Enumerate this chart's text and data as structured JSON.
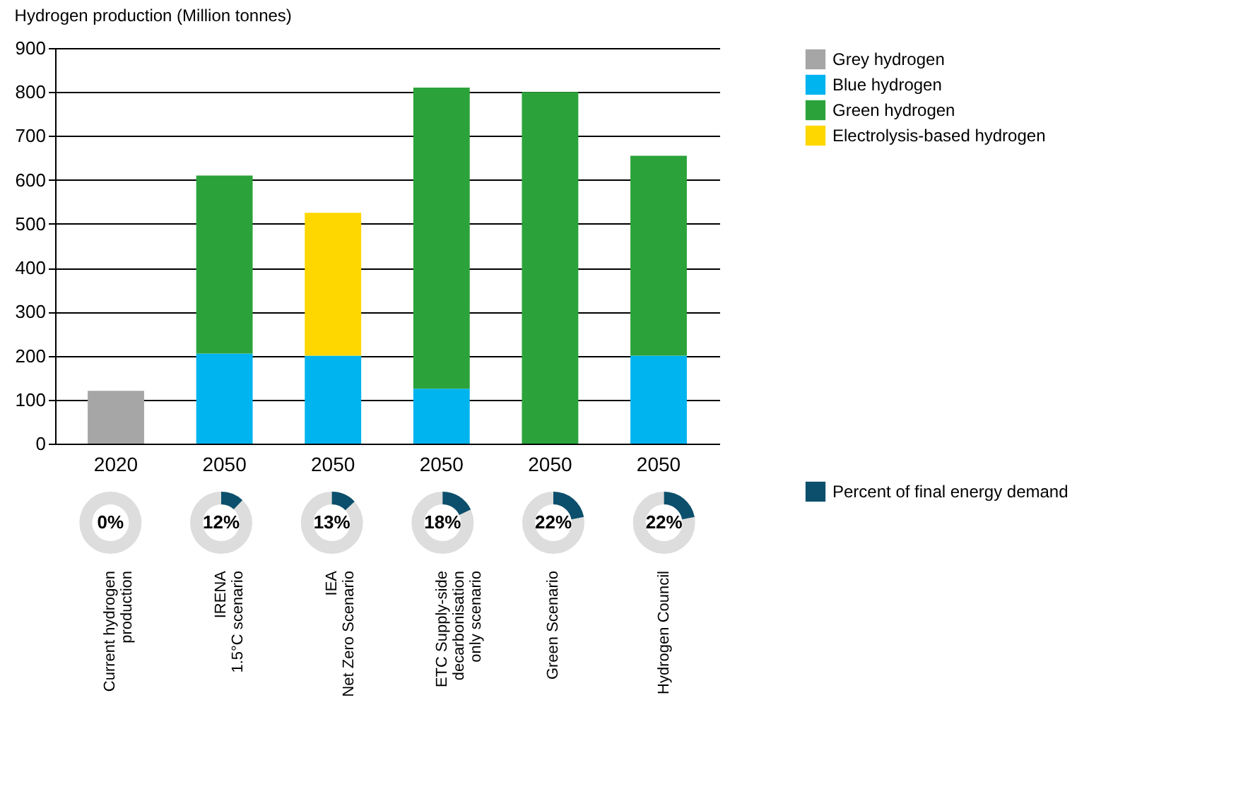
{
  "chart_data": [
    {
      "type": "bar",
      "title": "Hydrogen production (Million tonnes)",
      "categories": [
        "2020",
        "2050",
        "2050",
        "2050",
        "2050",
        "2050"
      ],
      "stacked": true,
      "ylim": [
        0,
        900
      ],
      "yticks": [
        0,
        100,
        200,
        300,
        400,
        500,
        600,
        700,
        800,
        900
      ],
      "grid": "y",
      "legend": "right",
      "series": [
        {
          "name": "Grey hydrogen",
          "color": "#a6a6a6",
          "values": [
            120,
            null,
            null,
            null,
            null,
            null
          ]
        },
        {
          "name": "Blue hydrogen",
          "color": "#00b4ef",
          "values": [
            null,
            205,
            200,
            125,
            null,
            200
          ]
        },
        {
          "name": "Green hydrogen",
          "color": "#2ca33a",
          "values": [
            null,
            405,
            null,
            685,
            800,
            455
          ]
        },
        {
          "name": "Electrolysis-based hydrogen",
          "color": "#ffd700",
          "values": [
            null,
            null,
            325,
            null,
            null,
            null
          ]
        }
      ],
      "annotations": [
        "Current hydrogen\nproduction",
        "IRENA\n1.5°C scenario",
        "IEA\nNet Zero Scenario",
        "ETC Supply-side\ndecarbonisation\nonly scenario",
        "Green Scenario",
        "Hydrogen Council"
      ]
    },
    {
      "type": "other",
      "legend": "right",
      "series": [
        {
          "name": "Percent of final energy demand",
          "color": "#0b4f6c",
          "values": [
            0,
            12,
            13,
            18,
            22,
            22
          ],
          "value_labels": [
            "0%",
            "12%",
            "13%",
            "18%",
            "22%",
            "22%"
          ]
        }
      ]
    }
  ]
}
